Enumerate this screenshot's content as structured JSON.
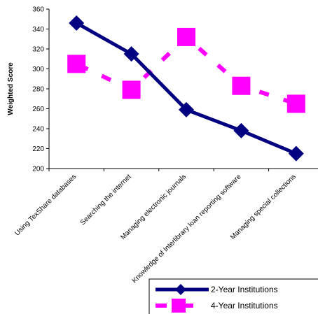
{
  "chart_data": {
    "type": "line",
    "title": "",
    "xlabel": "",
    "ylabel": "Weighted Score",
    "ylim": [
      200,
      360
    ],
    "yticks": [
      200,
      220,
      240,
      260,
      280,
      300,
      320,
      340,
      360
    ],
    "grid": false,
    "legend_position": "bottom-right",
    "categories": [
      "Using TexShare databases",
      "Searching the internet",
      "Managing electronic journals",
      "Knowledge of Interlibrary loan reporting software",
      "Managing special collections"
    ],
    "series": [
      {
        "name": "2-Year Institutions",
        "values": [
          346,
          315,
          259,
          238,
          215
        ],
        "color": "#000080",
        "line_style": "solid",
        "marker": "diamond"
      },
      {
        "name": "4-Year Institutions",
        "values": [
          305,
          279,
          332,
          283,
          265
        ],
        "color": "#FF00FF",
        "line_style": "dashed",
        "marker": "square"
      }
    ]
  }
}
